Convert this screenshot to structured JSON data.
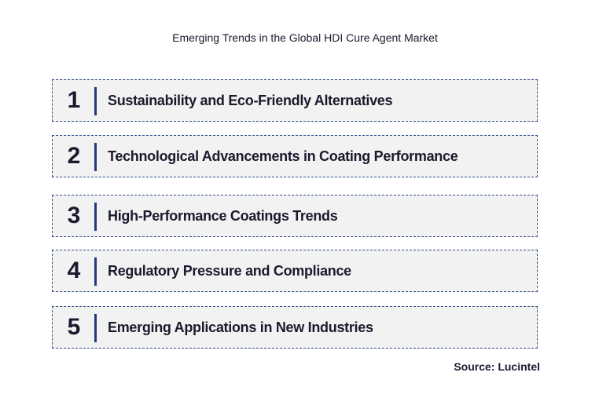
{
  "title": "Emerging Trends in the Global HDI Cure Agent Market",
  "items": [
    {
      "number": "1",
      "label": "Sustainability and Eco-Friendly Alternatives"
    },
    {
      "number": "2",
      "label": "Technological Advancements in Coating Performance"
    },
    {
      "number": "3",
      "label": "High-Performance Coatings Trends"
    },
    {
      "number": "4",
      "label": "Regulatory Pressure and Compliance"
    },
    {
      "number": "5",
      "label": "Emerging Applications in New Industries"
    }
  ],
  "source": "Source: Lucintel"
}
